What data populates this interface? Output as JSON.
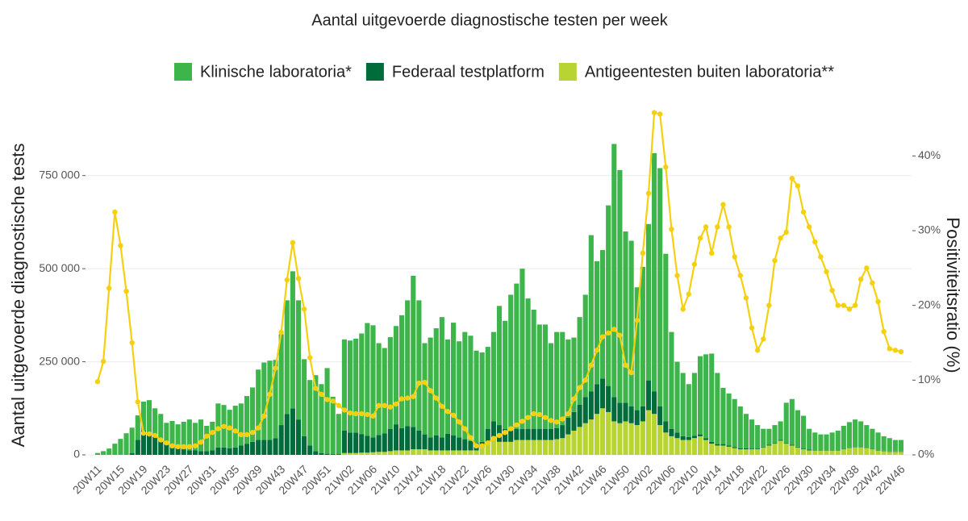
{
  "chart_data": {
    "type": "bar",
    "stacked": true,
    "title": "Aantal uitgevoerde diagnostische testen per week",
    "y_label": "Aantal uitgevoerde diagnostische tests",
    "y2_label": "Positiviteitsratio (%)",
    "legend": "top",
    "grid": true,
    "categories": [
      "20W11",
      null,
      null,
      null,
      "20W15",
      null,
      null,
      null,
      "20W19",
      null,
      null,
      null,
      "20W23",
      null,
      null,
      null,
      "20W27",
      null,
      null,
      null,
      "20W31",
      null,
      null,
      null,
      "20W35",
      null,
      null,
      null,
      "20W39",
      null,
      null,
      null,
      "20W43",
      null,
      null,
      null,
      "20W47",
      null,
      null,
      null,
      "20W51",
      null,
      null,
      null,
      "21W02",
      null,
      null,
      null,
      "21W06",
      null,
      null,
      null,
      "21W10",
      null,
      null,
      null,
      "21W14",
      null,
      null,
      null,
      "21W18",
      null,
      null,
      null,
      "21W22",
      null,
      null,
      null,
      "21W26",
      null,
      null,
      null,
      "21W30",
      null,
      null,
      null,
      "21W34",
      null,
      null,
      null,
      "21W38",
      null,
      null,
      null,
      "21W42",
      null,
      null,
      null,
      "21W46",
      null,
      null,
      null,
      "21W50",
      null,
      null,
      null,
      "22W02",
      null,
      null,
      null,
      "22W06",
      null,
      null,
      null,
      "22W10",
      null,
      null,
      null,
      "22W14",
      null,
      null,
      null,
      "22W18",
      null,
      null,
      null,
      "22W22",
      null,
      null,
      null,
      "22W26",
      null,
      null,
      null,
      "22W30",
      null,
      null,
      null,
      "22W34",
      null,
      null,
      null,
      "22W38",
      null,
      null,
      null,
      "22W42",
      null,
      null,
      null,
      "22W46"
    ],
    "ylim": [
      0,
      875000
    ],
    "yticks": [
      0,
      {
        "value": 250000,
        "label": "250 000"
      },
      {
        "value": 500000,
        "label": "500 000"
      },
      {
        "value": 750000,
        "label": "750 000"
      }
    ],
    "y2lim": [
      0,
      43.6
    ],
    "y2ticks": [
      {
        "value": 0,
        "label": "0%"
      },
      {
        "value": 10,
        "label": "10%"
      },
      {
        "value": 20,
        "label": "20%"
      },
      {
        "value": 30,
        "label": "30%"
      },
      {
        "value": 40,
        "label": "40%"
      }
    ],
    "series": [
      {
        "name": "Klinische laboratoria*",
        "color": "#3db54a",
        "values": [
          5000,
          10000,
          17000,
          30000,
          43000,
          58000,
          68000,
          66000,
          78000,
          87000,
          75000,
          70000,
          56000,
          66000,
          62000,
          74000,
          83000,
          74000,
          85000,
          68000,
          77000,
          118000,
          114000,
          103000,
          112000,
          113000,
          128000,
          146000,
          189000,
          208000,
          213000,
          210000,
          244000,
          305000,
          368000,
          320000,
          207000,
          176000,
          204000,
          185000,
          230000,
          154000,
          108000,
          245000,
          247000,
          252000,
          270000,
          303000,
          301000,
          247000,
          229000,
          246000,
          264000,
          303000,
          338000,
          406000,
          350000,
          245000,
          268000,
          288000,
          323000,
          253000,
          303000,
          258000,
          288000,
          283000,
          248000,
          240000,
          220000,
          240000,
          320000,
          290000,
          365000,
          390000,
          430000,
          350000,
          320000,
          280000,
          280000,
          230000,
          258000,
          250000,
          210000,
          200000,
          235000,
          275000,
          420000,
          330000,
          345000,
          485000,
          680000,
          625000,
          460000,
          445000,
          330000,
          375000,
          420000,
          640000,
          640000,
          450000,
          260000,
          190000,
          170000,
          142000,
          169000,
          210000,
          225000,
          237000,
          191000,
          151000,
          140000,
          129000,
          112000,
          92000,
          78000,
          63000,
          48000,
          43000,
          48000,
          50000,
          108000,
          123000,
          98000,
          88000,
          56000,
          47000,
          42000,
          42000,
          47000,
          52000,
          62000,
          69000,
          74000,
          69000,
          61000,
          54000,
          47000,
          39000,
          36000,
          31000,
          31000
        ]
      },
      {
        "name": "Federaal testplatform",
        "color": "#006b3b",
        "values": [
          0,
          0,
          0,
          0,
          0,
          0,
          5000,
          40000,
          65000,
          60000,
          50000,
          40000,
          30000,
          25000,
          20000,
          15000,
          12000,
          12000,
          10000,
          10000,
          12000,
          20000,
          20000,
          18000,
          20000,
          25000,
          30000,
          35000,
          40000,
          40000,
          40000,
          45000,
          80000,
          110000,
          125000,
          95000,
          50000,
          25000,
          10000,
          5000,
          3000,
          2000,
          2000,
          60000,
          55000,
          55000,
          50000,
          45000,
          40000,
          45000,
          50000,
          60000,
          70000,
          60000,
          65000,
          60000,
          50000,
          40000,
          35000,
          40000,
          35000,
          45000,
          40000,
          35000,
          30000,
          25000,
          20000,
          15000,
          40000,
          50000,
          45000,
          35000,
          30000,
          30000,
          30000,
          30000,
          30000,
          30000,
          30000,
          30000,
          30000,
          35000,
          45000,
          50000,
          60000,
          70000,
          75000,
          80000,
          80000,
          70000,
          65000,
          55000,
          50000,
          45000,
          40000,
          40000,
          80000,
          60000,
          50000,
          30000,
          20000,
          15000,
          10000,
          8000,
          6000,
          5000,
          5000,
          5000,
          4000,
          4000,
          3000,
          3000,
          3000,
          3000,
          2000,
          2000,
          2000,
          2000,
          2000,
          2000,
          2000,
          2000,
          2000,
          2000,
          2000,
          1000,
          1000,
          1000,
          1000,
          1000,
          1000,
          1000,
          1000,
          1000,
          1000,
          1000,
          1000,
          1000,
          1000,
          1000,
          1000
        ]
      },
      {
        "name": "Antigeentesten buiten laboratoria**",
        "color": "#b8d433",
        "values": [
          0,
          0,
          0,
          0,
          0,
          0,
          0,
          0,
          0,
          0,
          0,
          0,
          0,
          0,
          0,
          0,
          0,
          0,
          0,
          0,
          0,
          0,
          0,
          0,
          0,
          0,
          0,
          0,
          0,
          0,
          0,
          0,
          0,
          0,
          0,
          0,
          0,
          0,
          0,
          0,
          0,
          0,
          0,
          5000,
          5000,
          5000,
          6000,
          6000,
          7000,
          8000,
          8000,
          10000,
          12000,
          12000,
          12000,
          15000,
          15000,
          15000,
          12000,
          12000,
          12000,
          12000,
          12000,
          12000,
          12000,
          12000,
          12000,
          20000,
          30000,
          40000,
          35000,
          35000,
          35000,
          40000,
          40000,
          40000,
          40000,
          40000,
          40000,
          40000,
          42000,
          45000,
          55000,
          65000,
          75000,
          85000,
          95000,
          110000,
          125000,
          115000,
          90000,
          85000,
          90000,
          85000,
          80000,
          90000,
          120000,
          110000,
          80000,
          60000,
          50000,
          45000,
          40000,
          40000,
          45000,
          50000,
          40000,
          30000,
          25000,
          25000,
          22000,
          18000,
          15000,
          15000,
          15000,
          15000,
          20000,
          25000,
          30000,
          38000,
          30000,
          25000,
          20000,
          15000,
          12000,
          12000,
          12000,
          12000,
          12000,
          12000,
          15000,
          18000,
          20000,
          20000,
          18000,
          15000,
          12000,
          10000,
          8000,
          8000,
          8000
        ]
      },
      {
        "type": "line",
        "axis": "y2",
        "color": "#f5d00f",
        "values": [
          9.8,
          12.5,
          22.3,
          32.5,
          28.0,
          21.9,
          15.0,
          7.1,
          2.9,
          2.8,
          2.6,
          2.0,
          1.6,
          1.2,
          1.1,
          1.1,
          1.1,
          1.2,
          1.7,
          2.5,
          3.0,
          3.5,
          3.8,
          3.6,
          3.2,
          2.7,
          2.7,
          3.0,
          3.6,
          5.2,
          8.1,
          11.6,
          16.4,
          23.4,
          28.4,
          23.6,
          19.5,
          13.0,
          8.9,
          8.1,
          7.4,
          7.2,
          6.6,
          6.0,
          5.6,
          5.5,
          5.5,
          5.4,
          5.2,
          6.6,
          6.6,
          6.4,
          6.8,
          7.5,
          7.6,
          7.8,
          9.6,
          9.7,
          8.6,
          7.6,
          6.5,
          5.8,
          5.3,
          4.4,
          3.5,
          2.3,
          1.2,
          1.2,
          1.6,
          2.2,
          2.6,
          3.0,
          3.5,
          4.0,
          4.5,
          5.0,
          5.5,
          5.4,
          5.0,
          4.6,
          4.4,
          4.8,
          5.5,
          7.5,
          9.0,
          10.0,
          12.0,
          14.0,
          15.8,
          16.3,
          16.8,
          16.0,
          12.0,
          11.0,
          18.0,
          27.0,
          35.0,
          45.8,
          45.6,
          38.5,
          30.2,
          24.0,
          19.5,
          21.5,
          25.5,
          29.0,
          30.5,
          27.0,
          30.5,
          33.5,
          30.5,
          26.5,
          24.0,
          21.0,
          17.0,
          14.0,
          15.5,
          20.0,
          26.0,
          29.0,
          29.8,
          37.0,
          36.0,
          32.5,
          30.5,
          28.5,
          26.5,
          24.5,
          22.0,
          20.0,
          20.0,
          19.5,
          20.0,
          23.5,
          25.0,
          23.0,
          20.5,
          16.5,
          14.2,
          14.0,
          13.8
        ]
      }
    ]
  }
}
